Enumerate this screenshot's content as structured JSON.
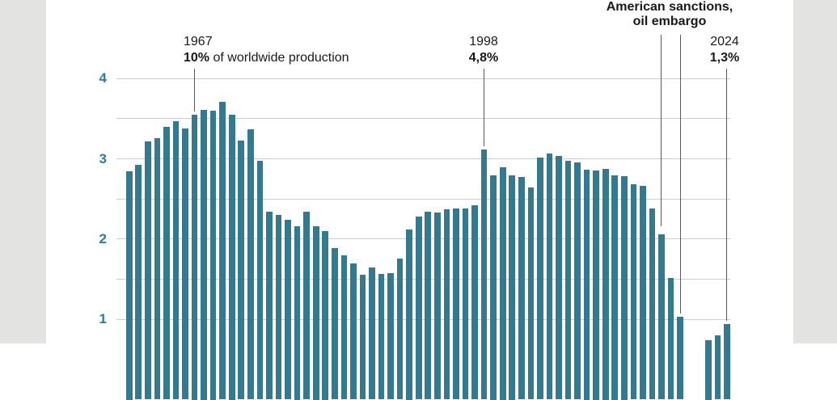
{
  "chart_data": {
    "type": "bar",
    "year_start": 1960,
    "year_end": 2024,
    "values": [
      2.85,
      2.93,
      3.22,
      3.26,
      3.4,
      3.47,
      3.38,
      3.55,
      3.61,
      3.6,
      3.71,
      3.55,
      3.23,
      3.37,
      2.98,
      2.34,
      2.3,
      2.24,
      2.16,
      2.34,
      2.16,
      2.1,
      1.89,
      1.8,
      1.7,
      1.56,
      1.65,
      1.57,
      1.58,
      1.76,
      2.12,
      2.28,
      2.34,
      2.33,
      2.37,
      2.38,
      2.38,
      2.42,
      3.12,
      2.8,
      2.9,
      2.8,
      2.77,
      2.64,
      3.02,
      3.07,
      3.04,
      2.98,
      2.96,
      2.87,
      2.86,
      2.88,
      2.8,
      2.79,
      2.68,
      2.66,
      2.38,
      2.06,
      1.52,
      1.03,
      null,
      null,
      0.74,
      0.8,
      0.94
    ],
    "ylim": [
      0,
      4
    ],
    "y_ticks_labeled": [
      4,
      3,
      2,
      1
    ],
    "gridlines": [
      4,
      3.5,
      3,
      2.5,
      2,
      1.5,
      1
    ],
    "grid": "on",
    "legend": "none",
    "annotations": [
      {
        "id": "1967",
        "title": "1967",
        "subtitle_bold": "10%",
        "subtitle_rest": " of worldwide production",
        "points_to_years": [
          1967
        ]
      },
      {
        "id": "1998",
        "title": "1998",
        "subtitle_bold": "4,8%",
        "subtitle_rest": "",
        "points_to_years": [
          1998
        ]
      },
      {
        "id": "sanctions",
        "title_line1": "American sanctions,",
        "title_line2": "oil embargo",
        "points_to_years": [
          2017,
          2019
        ]
      },
      {
        "id": "2024",
        "title": "2024",
        "subtitle_bold": "1,3%",
        "subtitle_rest": "",
        "points_to_years": [
          2024
        ]
      }
    ],
    "colors": {
      "bar": "#35798f",
      "axis_label": "#2b7ca3",
      "gridline": "#cdcdcd",
      "annotation_line": "#595959",
      "annotation_text": "#1a1a1a",
      "side_band": "#e3e3e1",
      "background": "#ffffff"
    }
  }
}
